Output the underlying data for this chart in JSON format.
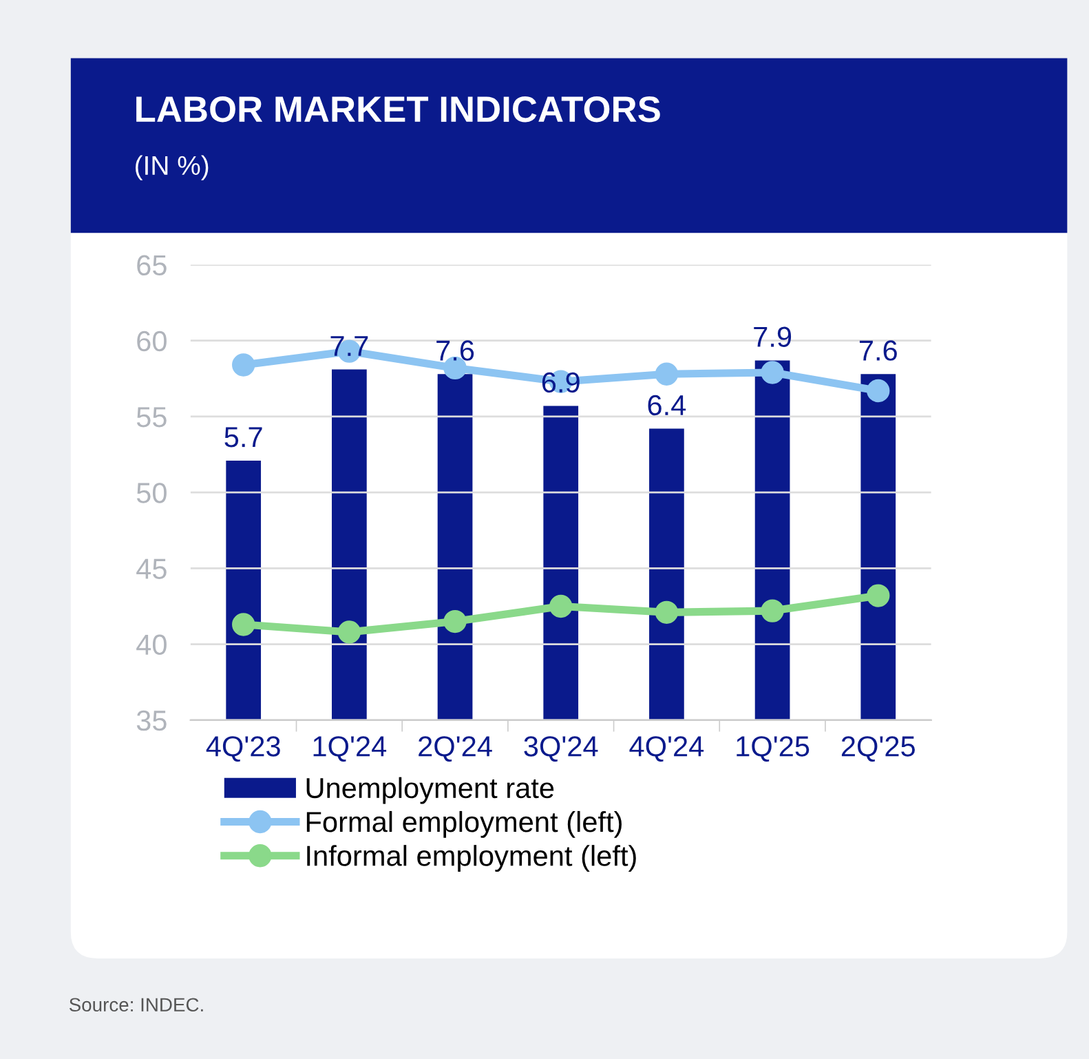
{
  "chart_data": {
    "type": "bar",
    "title": "LABOR MARKET INDICATORS",
    "subtitle": "(IN %)",
    "categories": [
      "4Q'23",
      "1Q'24",
      "2Q'24",
      "3Q'24",
      "4Q'24",
      "1Q'25",
      "2Q'25"
    ],
    "series": [
      {
        "name": "Unemployment rate",
        "axis": "y2",
        "color": "#0a1a8c",
        "values": [
          5.7,
          7.7,
          7.6,
          6.9,
          6.4,
          7.9,
          7.6
        ],
        "value_labels": [
          "5.7",
          "7.7",
          "7.6",
          "6.9",
          "6.4",
          "7.9",
          "7.6"
        ]
      },
      {
        "name": "Formal employment (left)",
        "type": "line",
        "color": "#8cc4f2",
        "values": [
          58.4,
          59.3,
          58.2,
          57.3,
          57.8,
          57.9,
          56.7
        ]
      },
      {
        "name": "Informal employment (left)",
        "type": "line",
        "color": "#8ad98a",
        "values": [
          41.3,
          40.8,
          41.5,
          42.5,
          42.1,
          42.2,
          43.2
        ]
      }
    ],
    "ylim": [
      35,
      65
    ],
    "yticks": [
      35,
      40,
      45,
      50,
      55,
      60,
      65
    ],
    "y2lim": [
      0,
      10
    ],
    "grid": "y",
    "legend": "bottom",
    "marker": "circle",
    "line_style": "solid",
    "annotations": [
      "Source: INDEC."
    ]
  }
}
